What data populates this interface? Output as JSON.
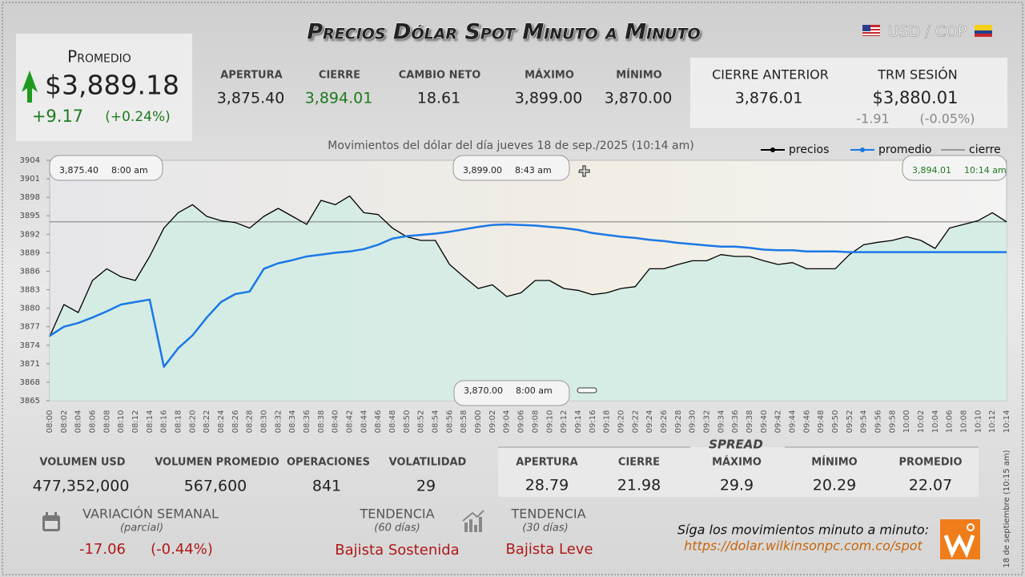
{
  "header": {
    "title": "Precios Dólar Spot Minuto a Minuto",
    "pair": "USD / COP"
  },
  "average_panel": {
    "label": "Promedio",
    "value": "$3,889.18",
    "change": "+9.17",
    "change_pct": "(+0.24%)"
  },
  "session_stats": [
    {
      "label": "APERTURA",
      "value": "3,875.40"
    },
    {
      "label": "CIERRE",
      "value": "3,894.01"
    },
    {
      "label": "CAMBIO NETO",
      "value": "18.61"
    },
    {
      "label": "MÁXIMO",
      "value": "3,899.00"
    },
    {
      "label": "MÍNIMO",
      "value": "3,870.00"
    }
  ],
  "previous_close": {
    "label": "CIERRE ANTERIOR",
    "value": "3,876.01"
  },
  "trm": {
    "label": "TRM SESIÓN",
    "value": "$3,880.01",
    "change": "-1.91",
    "change_pct": "(-0.05%)"
  },
  "chart_data": {
    "type": "line",
    "subtitle": "Movimientos del dólar del día jueves 18 de sep./2025 (10:14 am)",
    "categories": [
      "08:00",
      "08:02",
      "08:04",
      "08:06",
      "08:08",
      "08:10",
      "08:12",
      "08:14",
      "08:16",
      "08:18",
      "08:20",
      "08:22",
      "08:24",
      "08:26",
      "08:28",
      "08:30",
      "08:32",
      "08:34",
      "08:36",
      "08:38",
      "08:40",
      "08:42",
      "08:44",
      "08:46",
      "08:48",
      "08:50",
      "08:52",
      "08:54",
      "08:56",
      "08:58",
      "09:00",
      "09:02",
      "09:04",
      "09:06",
      "09:08",
      "09:10",
      "09:12",
      "09:14",
      "09:16",
      "09:18",
      "09:20",
      "09:22",
      "09:24",
      "09:26",
      "09:28",
      "09:30",
      "09:32",
      "09:34",
      "09:36",
      "09:38",
      "09:40",
      "09:42",
      "09:44",
      "09:46",
      "09:48",
      "09:50",
      "09:52",
      "09:54",
      "09:56",
      "09:58",
      "10:00",
      "10:02",
      "10:04",
      "10:06",
      "10:08",
      "10:10",
      "10:12",
      "10:14"
    ],
    "series": [
      {
        "name": "precios",
        "color": "#000000",
        "values": [
          3875.4,
          3880.6,
          3879.3,
          3884.5,
          3886.4,
          3885.1,
          3884.5,
          3888.4,
          3893,
          3895.5,
          3896.8,
          3894.9,
          3894.2,
          3893.9,
          3893,
          3894.9,
          3896.2,
          3894.9,
          3893.6,
          3897.5,
          3896.8,
          3898.2,
          3895.5,
          3895.2,
          3893,
          3891.6,
          3891,
          3891,
          3887.1,
          3885.1,
          3883.2,
          3883.8,
          3881.9,
          3882.5,
          3884.5,
          3884.5,
          3883.2,
          3882.9,
          3882.2,
          3882.5,
          3883.2,
          3883.5,
          3886.4,
          3886.4,
          3887.1,
          3887.7,
          3887.7,
          3888.7,
          3888.4,
          3888.4,
          3887.7,
          3887.1,
          3887.4,
          3886.4,
          3886.4,
          3886.4,
          3888.7,
          3890.3,
          3890.7,
          3891,
          3891.6,
          3891,
          3889.7,
          3893,
          3893.6,
          3894.2,
          3895.5,
          3894.01
        ]
      },
      {
        "name": "promedio",
        "color": "#1a78e6",
        "values": [
          3875.5,
          3877,
          3877.6,
          3878.5,
          3879.5,
          3880.6,
          3881,
          3881.4,
          3870.5,
          3873.5,
          3875.6,
          3878.5,
          3881,
          3882.3,
          3882.7,
          3886.4,
          3887.3,
          3887.8,
          3888.4,
          3888.7,
          3889,
          3889.2,
          3889.6,
          3890.3,
          3891.3,
          3891.7,
          3891.9,
          3892.1,
          3892.4,
          3892.8,
          3893.2,
          3893.5,
          3893.6,
          3893.5,
          3893.4,
          3893.2,
          3893,
          3892.7,
          3892.2,
          3891.9,
          3891.6,
          3891.4,
          3891.1,
          3890.9,
          3890.6,
          3890.4,
          3890.2,
          3890,
          3890,
          3889.8,
          3889.5,
          3889.4,
          3889.4,
          3889.2,
          3889.2,
          3889.2,
          3889.1,
          3889.1,
          3889.1,
          3889.1,
          3889.1,
          3889.1,
          3889.1,
          3889.1,
          3889.1,
          3889.1,
          3889.1,
          3889.1
        ]
      }
    ],
    "reference_line": {
      "name": "cierre",
      "value": 3894.01,
      "color": "#555555"
    },
    "area_color": "#d3ece4",
    "ylim": [
      3865,
      3904
    ],
    "yticks": [
      3865,
      3868,
      3871,
      3874,
      3877,
      3880,
      3883,
      3886,
      3889,
      3892,
      3895,
      3898,
      3901,
      3904
    ],
    "legend": "upper right",
    "annotations": [
      {
        "value": "3,875.40",
        "time": "8:00 am"
      },
      {
        "value": "3,899.00",
        "time": "8:43 am"
      },
      {
        "value": "3,894.01",
        "time": "10:14 am"
      },
      {
        "value": "3,870.00",
        "time": "8:00 am"
      }
    ]
  },
  "volume_stats": [
    {
      "label": "VOLUMEN USD",
      "value": "477,352,000"
    },
    {
      "label": "VOLUMEN PROMEDIO",
      "value": "567,600"
    },
    {
      "label": "OPERACIONES",
      "value": "841"
    },
    {
      "label": "VOLATILIDAD",
      "value": "29"
    }
  ],
  "spread": {
    "title": "SPREAD",
    "items": [
      {
        "label": "APERTURA",
        "value": "28.79"
      },
      {
        "label": "CIERRE",
        "value": "21.98"
      },
      {
        "label": "MÁXIMO",
        "value": "29.9"
      },
      {
        "label": "MÍNIMO",
        "value": "20.29"
      },
      {
        "label": "PROMEDIO",
        "value": "22.07"
      }
    ]
  },
  "weekly": {
    "label": "VARIACIÓN SEMANAL",
    "note": "(parcial)",
    "change": "-17.06",
    "change_pct": "(-0.44%)"
  },
  "trend_60": {
    "label": "TENDENCIA",
    "note": "(60 días)",
    "value": "Bajista Sostenida"
  },
  "trend_30": {
    "label": "TENDENCIA",
    "note": "(30 días)",
    "value": "Bajista Leve"
  },
  "footer": {
    "cta": "Síga los movimientos minuto a minuto:",
    "url": "https://dolar.wilkinsonpc.com.co/spot",
    "timestamp": "18 de septiembre (10:15 am)"
  }
}
